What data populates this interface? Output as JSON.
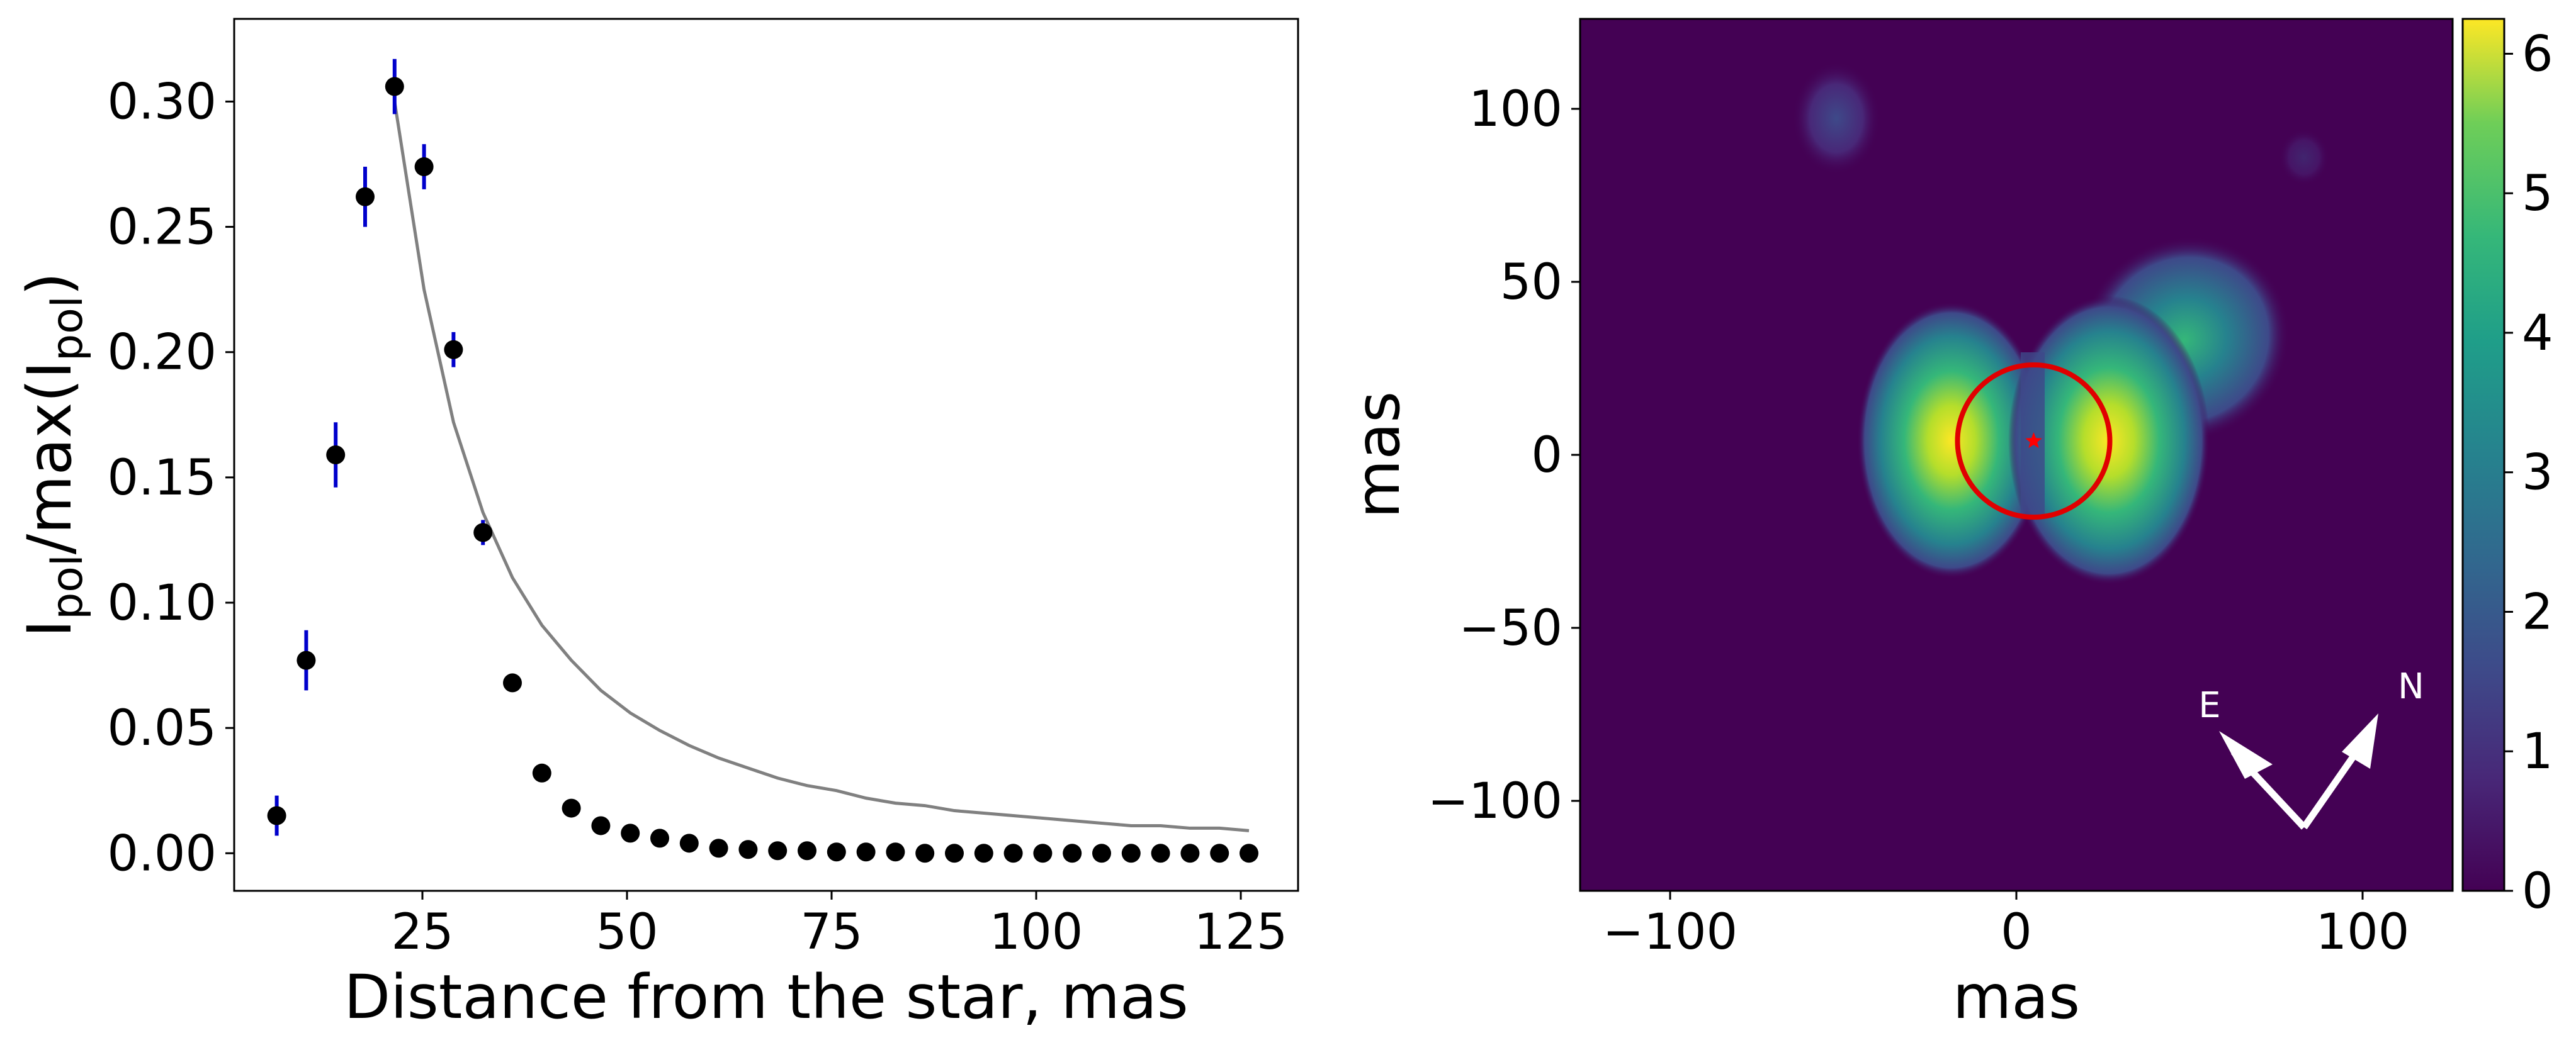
{
  "chart_data": [
    {
      "type": "scatter",
      "ylabel": "I_pol/max(I_pol)",
      "ylabel_parts": {
        "main1": "I",
        "sub1": "pol",
        "mid": "/max(I",
        "sub2": "pol",
        "end": ")"
      },
      "xlabel": "Distance from the star, mas",
      "xlim": [
        2,
        132
      ],
      "ylim": [
        -0.015,
        0.333
      ],
      "x_ticks": [
        25,
        50,
        75,
        100,
        125
      ],
      "x_tick_labels": [
        "25",
        "50",
        "75",
        "100",
        "125"
      ],
      "y_ticks": [
        0.0,
        0.05,
        0.1,
        0.15,
        0.2,
        0.25,
        0.3
      ],
      "y_tick_labels": [
        "0.00",
        "0.05",
        "0.10",
        "0.15",
        "0.20",
        "0.25",
        "0.30"
      ],
      "grid": false,
      "points_color": "#000000",
      "errorbar_color": "#0000cc",
      "series": [
        {
          "x": [
            7.2,
            10.8,
            14.4,
            18.0,
            21.6,
            25.2,
            28.8,
            32.4,
            36.0,
            39.6,
            43.2,
            46.8,
            50.4,
            54.0,
            57.6,
            61.2,
            64.8,
            68.4,
            72.0,
            75.6,
            79.2,
            82.8,
            86.4,
            90.0,
            93.6,
            97.2,
            100.8,
            104.4,
            108.0,
            111.6,
            115.2,
            118.8,
            122.4,
            126.0
          ],
          "y": [
            0.015,
            0.077,
            0.159,
            0.262,
            0.306,
            0.274,
            0.201,
            0.128,
            0.068,
            0.032,
            0.018,
            0.011,
            0.008,
            0.006,
            0.004,
            0.002,
            0.0015,
            0.001,
            0.001,
            0.0005,
            0.0005,
            0.0005,
            0.0,
            0.0,
            0.0,
            0.0,
            0.0,
            0.0,
            0.0,
            0.0,
            0.0,
            0.0,
            0.0,
            0.0
          ],
          "yerr": [
            0.008,
            0.012,
            0.013,
            0.012,
            0.011,
            0.009,
            0.007,
            0.005,
            0.003,
            0.001,
            0.001,
            0.001,
            0.0,
            0.0,
            0.0,
            0.0,
            0.0,
            0.0,
            0.0,
            0.0,
            0.0,
            0.0,
            0.0,
            0.0,
            0.0,
            0.0,
            0.0,
            0.0,
            0.0,
            0.0,
            0.0,
            0.0,
            0.0,
            0.0
          ]
        },
        {
          "type": "line",
          "color": "#808080",
          "x": [
            21.6,
            25.2,
            28.8,
            32.4,
            36.0,
            39.6,
            43.2,
            46.8,
            50.4,
            54.0,
            57.6,
            61.2,
            64.8,
            68.4,
            72.0,
            75.6,
            79.2,
            82.8,
            86.4,
            90.0,
            93.6,
            97.2,
            100.8,
            104.4,
            108.0,
            111.6,
            115.2,
            118.8,
            122.4,
            126.0
          ],
          "y": [
            0.3,
            0.225,
            0.172,
            0.136,
            0.11,
            0.091,
            0.077,
            0.065,
            0.056,
            0.049,
            0.043,
            0.038,
            0.034,
            0.03,
            0.027,
            0.025,
            0.022,
            0.02,
            0.019,
            0.017,
            0.016,
            0.015,
            0.014,
            0.013,
            0.012,
            0.011,
            0.011,
            0.01,
            0.01,
            0.009
          ]
        }
      ]
    },
    {
      "type": "heatmap",
      "xlabel": "mas",
      "ylabel": "mas",
      "xlim": [
        -126,
        126
      ],
      "ylim": [
        -126,
        126
      ],
      "x_ticks": [
        -100,
        0,
        100
      ],
      "x_tick_labels": [
        "−100",
        "0",
        "100"
      ],
      "y_ticks": [
        100,
        50,
        0,
        -50,
        -100
      ],
      "y_tick_labels": [
        "100",
        "50",
        "0",
        "−50",
        "−100"
      ],
      "colormap": "viridis",
      "colorbar_range": [
        0,
        6.25
      ],
      "colorbar_ticks": [
        0,
        1,
        2,
        3,
        4,
        5,
        6
      ],
      "colorbar_tick_labels": [
        "0",
        "1",
        "2",
        "3",
        "4",
        "5",
        "6"
      ],
      "circle": {
        "center": [
          5,
          4
        ],
        "radius": 22,
        "color": "#e00000"
      },
      "star_marker": {
        "x": 5,
        "y": 4,
        "color": "#ff0000"
      },
      "compass": {
        "labels": [
          "E",
          "N"
        ],
        "color": "#ffffff"
      }
    }
  ]
}
